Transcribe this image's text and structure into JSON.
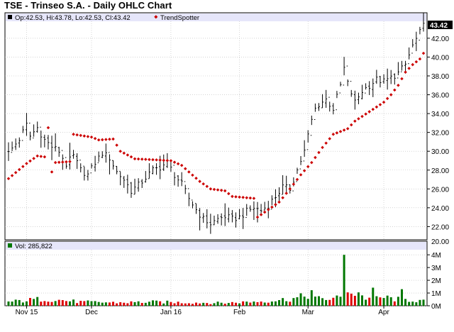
{
  "title": "TSE - Trinseo S.A. - Daily OHLC Chart",
  "colors": {
    "price_bar": "#000000",
    "trend_dot": "#cc0000",
    "vol_up": "#007700",
    "vol_down": "#dd0000",
    "header_bg": "#e6e6fa",
    "grid": "#bbbbbb",
    "last_price_bg": "#000000"
  },
  "chart_data": [
    {
      "type": "ohlc",
      "header": {
        "ohlc_text": "Op:42.53, Hi:43.78, Lo:42.53, Cl:43.42",
        "legend_label": "TrendSpotter"
      },
      "y_ticks": [
        "22.00",
        "24.00",
        "26.00",
        "28.00",
        "30.00",
        "32.00",
        "34.00",
        "36.00",
        "38.00",
        "40.00",
        "42.00"
      ],
      "ylim": [
        20.6,
        43.8
      ],
      "last_price_label": "43.42",
      "x_labels": [
        {
          "label": "Nov 15",
          "index": 5
        },
        {
          "label": "Dec",
          "index": 23
        },
        {
          "label": "Jan 16",
          "index": 45
        },
        {
          "label": "Feb",
          "index": 64
        },
        {
          "label": "Mar",
          "index": 83
        },
        {
          "label": "Apr",
          "index": 104
        }
      ],
      "n_days": 116,
      "price_anchors": [
        [
          0,
          29.8
        ],
        [
          3,
          31.3
        ],
        [
          5,
          32.8
        ],
        [
          6,
          31.6
        ],
        [
          8,
          32.5
        ],
        [
          10,
          31.2
        ],
        [
          12,
          30.5
        ],
        [
          14,
          30.0
        ],
        [
          16,
          28.6
        ],
        [
          18,
          29.5
        ],
        [
          20,
          28.0
        ],
        [
          22,
          27.5
        ],
        [
          24,
          28.8
        ],
        [
          26,
          29.8
        ],
        [
          28,
          29.3
        ],
        [
          30,
          27.8
        ],
        [
          32,
          27.0
        ],
        [
          34,
          25.8
        ],
        [
          36,
          26.4
        ],
        [
          38,
          27.2
        ],
        [
          40,
          28.0
        ],
        [
          42,
          28.3
        ],
        [
          44,
          28.8
        ],
        [
          46,
          27.5
        ],
        [
          48,
          26.5
        ],
        [
          50,
          25.0
        ],
        [
          52,
          23.8
        ],
        [
          54,
          22.8
        ],
        [
          56,
          22.3
        ],
        [
          58,
          22.8
        ],
        [
          60,
          23.1
        ],
        [
          62,
          22.8
        ],
        [
          64,
          23.0
        ],
        [
          66,
          23.6
        ],
        [
          68,
          24.0
        ],
        [
          70,
          23.7
        ],
        [
          72,
          24.3
        ],
        [
          74,
          25.2
        ],
        [
          76,
          26.2
        ],
        [
          78,
          26.0
        ],
        [
          80,
          28.0
        ],
        [
          82,
          30.0
        ],
        [
          84,
          33.3
        ],
        [
          85,
          34.5
        ],
        [
          86,
          35.0
        ],
        [
          88,
          35.5
        ],
        [
          90,
          34.5
        ],
        [
          92,
          37.0
        ],
        [
          93,
          38.8
        ],
        [
          94,
          37.2
        ],
        [
          96,
          35.2
        ],
        [
          98,
          36.4
        ],
        [
          100,
          37.0
        ],
        [
          102,
          37.6
        ],
        [
          104,
          37.4
        ],
        [
          106,
          37.8
        ],
        [
          108,
          38.3
        ],
        [
          110,
          39.2
        ],
        [
          112,
          41.2
        ],
        [
          114,
          42.6
        ],
        [
          115,
          43.3
        ]
      ],
      "trend_anchors": [
        [
          0,
          27.1
        ],
        [
          5,
          28.7
        ],
        [
          8,
          29.5
        ],
        [
          10,
          29.4
        ],
        [
          11,
          32.5
        ],
        [
          12,
          27.8
        ],
        [
          13,
          28.8
        ],
        [
          17,
          28.9
        ],
        [
          18,
          31.8
        ],
        [
          23,
          31.5
        ],
        [
          25,
          31.2
        ],
        [
          29,
          31.3
        ],
        [
          31,
          30.0
        ],
        [
          35,
          29.2
        ],
        [
          45,
          29.0
        ],
        [
          48,
          28.5
        ],
        [
          50,
          27.8
        ],
        [
          53,
          26.8
        ],
        [
          56,
          26.0
        ],
        [
          60,
          25.8
        ],
        [
          62,
          25.2
        ],
        [
          68,
          25.0
        ],
        [
          69,
          23.0
        ],
        [
          72,
          23.8
        ],
        [
          75,
          24.6
        ],
        [
          78,
          26.0
        ],
        [
          81,
          27.5
        ],
        [
          84,
          28.8
        ],
        [
          87,
          30.4
        ],
        [
          90,
          31.8
        ],
        [
          94,
          32.4
        ],
        [
          96,
          33.2
        ],
        [
          100,
          34.2
        ],
        [
          104,
          35.2
        ],
        [
          106,
          36.0
        ],
        [
          108,
          37.0
        ],
        [
          110,
          38.4
        ],
        [
          112,
          39.2
        ],
        [
          114,
          39.8
        ],
        [
          115,
          40.4
        ]
      ],
      "trend_gaps": [
        11,
        18,
        69
      ]
    },
    {
      "type": "bar",
      "header": {
        "legend_label": "Vol: 285,822"
      },
      "y_ticks": [
        "0M",
        "1M",
        "2M",
        "3M",
        "4M"
      ],
      "ylim": [
        0,
        4.4
      ],
      "unit": "M",
      "volume_anchors": [
        [
          0,
          0.3
        ],
        [
          10,
          0.55
        ],
        [
          20,
          0.3
        ],
        [
          30,
          0.25
        ],
        [
          40,
          0.3
        ],
        [
          50,
          0.25
        ],
        [
          60,
          0.22
        ],
        [
          70,
          0.35
        ],
        [
          75,
          0.45
        ],
        [
          80,
          0.6
        ],
        [
          82,
          0.75
        ],
        [
          84,
          1.0
        ],
        [
          86,
          0.55
        ],
        [
          90,
          0.55
        ],
        [
          95,
          0.8
        ],
        [
          100,
          0.6
        ],
        [
          104,
          0.65
        ],
        [
          108,
          0.5
        ],
        [
          112,
          0.45
        ],
        [
          115,
          0.35
        ]
      ],
      "volume_spikes": [
        [
          84,
          1.22
        ],
        [
          85,
          0.72
        ],
        [
          93,
          4.0
        ],
        [
          94,
          1.05
        ],
        [
          95,
          0.95
        ],
        [
          97,
          1.05
        ],
        [
          101,
          1.42
        ],
        [
          109,
          1.3
        ]
      ],
      "volume_colors": "alternating up/down by day close"
    }
  ]
}
